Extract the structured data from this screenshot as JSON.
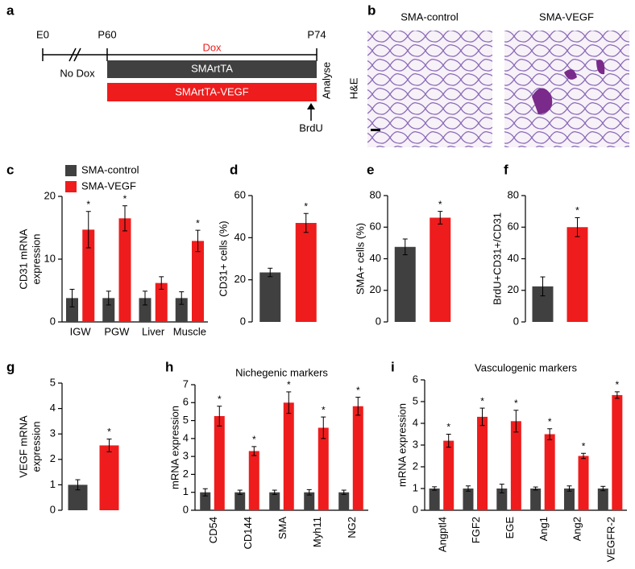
{
  "panel_labels": [
    "a",
    "b",
    "c",
    "d",
    "e",
    "f",
    "g",
    "h",
    "i"
  ],
  "timeline": {
    "stages": [
      "E0",
      "P60",
      "P74"
    ],
    "treatment": "Dox",
    "pre_treatment": "No Dox",
    "bars": [
      "SMArtTA",
      "SMArtTA-VEGF"
    ],
    "end_label": "Analyse",
    "arrow_label": "BrdU"
  },
  "micrographs": {
    "columns": [
      "SMA-control",
      "SMA-VEGF"
    ],
    "row_label": "H&E"
  },
  "chart_data": [
    {
      "type": "bar",
      "ylabel": [
        "CD31 mRNA",
        "expression"
      ],
      "categories": [
        "IGW",
        "PGW",
        "Liver",
        "Muscle"
      ],
      "ylim": [
        0,
        20
      ],
      "yticks": [
        0,
        10,
        20
      ],
      "legend": true,
      "series": [
        {
          "name": "SMA-control",
          "color": "#404040",
          "values": [
            3.8,
            3.8,
            3.8,
            3.8
          ],
          "errors": [
            1.4,
            1.1,
            1.1,
            1.0
          ]
        },
        {
          "name": "SMA-VEGF",
          "color": "#ee1c1c",
          "values": [
            14.7,
            16.5,
            6.2,
            12.9
          ],
          "errors": [
            2.9,
            2.0,
            1.0,
            1.7
          ],
          "annotations": [
            "*",
            "*",
            null,
            "*"
          ]
        }
      ]
    },
    {
      "type": "bar",
      "ylabel": [
        "CD31+ cells (%)"
      ],
      "categories": [
        null
      ],
      "ylim": [
        0,
        60
      ],
      "yticks": [
        0,
        20,
        40,
        60
      ],
      "series": [
        {
          "color": "#404040",
          "values": [
            23.5
          ],
          "errors": [
            2.0
          ]
        },
        {
          "color": "#ee1c1c",
          "values": [
            47
          ],
          "errors": [
            4.5
          ],
          "annotations": [
            "*"
          ]
        }
      ]
    },
    {
      "type": "bar",
      "ylabel": [
        "SMA+ cells (%)"
      ],
      "categories": [
        null
      ],
      "ylim": [
        0,
        80
      ],
      "yticks": [
        0,
        20,
        40,
        60,
        80
      ],
      "series": [
        {
          "color": "#404040",
          "values": [
            47.5
          ],
          "errors": [
            5
          ]
        },
        {
          "color": "#ee1c1c",
          "values": [
            66
          ],
          "errors": [
            4
          ],
          "annotations": [
            "*"
          ]
        }
      ]
    },
    {
      "type": "bar",
      "ylabel": [
        "BrdU+CD31+/CD31"
      ],
      "categories": [
        null
      ],
      "ylim": [
        0,
        80
      ],
      "yticks": [
        0,
        20,
        40,
        60,
        80
      ],
      "series": [
        {
          "color": "#404040",
          "values": [
            22.5
          ],
          "errors": [
            6
          ]
        },
        {
          "color": "#ee1c1c",
          "values": [
            60
          ],
          "errors": [
            6
          ],
          "annotations": [
            "*"
          ]
        }
      ]
    },
    {
      "type": "bar",
      "ylabel": [
        "VEGF mRNA",
        "expression"
      ],
      "categories": [
        null
      ],
      "ylim": [
        0,
        5
      ],
      "yticks": [
        0,
        1,
        2,
        3,
        4,
        5
      ],
      "series": [
        {
          "color": "#404040",
          "values": [
            1.0
          ],
          "errors": [
            0.2
          ]
        },
        {
          "color": "#ee1c1c",
          "values": [
            2.55
          ],
          "errors": [
            0.25
          ],
          "annotations": [
            "*"
          ]
        }
      ]
    },
    {
      "type": "bar",
      "title": "Nichegenic markers",
      "ylabel": [
        "mRNA expression"
      ],
      "categories": [
        "CD54",
        "CD144",
        "SMA",
        "Myh11",
        "NG2"
      ],
      "ylim": [
        0,
        7
      ],
      "yticks": [
        0,
        1,
        2,
        3,
        4,
        5,
        6,
        7
      ],
      "series": [
        {
          "color": "#404040",
          "values": [
            1,
            1,
            1,
            1,
            1
          ],
          "errors": [
            0.2,
            0.12,
            0.12,
            0.15,
            0.12
          ]
        },
        {
          "color": "#ee1c1c",
          "values": [
            5.25,
            3.3,
            6.0,
            4.6,
            5.8
          ],
          "errors": [
            0.55,
            0.25,
            0.6,
            0.6,
            0.5
          ],
          "annotations": [
            "*",
            "*",
            "*",
            "*",
            "*"
          ]
        }
      ]
    },
    {
      "type": "bar",
      "title": "Vasculogenic markers",
      "ylabel": [
        "mRNA expression"
      ],
      "categories": [
        "Angptl4",
        "FGF2",
        "EGE",
        "Ang1",
        "Ang2",
        "VEGFR-2"
      ],
      "ylim": [
        0,
        6
      ],
      "yticks": [
        0,
        1,
        2,
        3,
        4,
        5,
        6
      ],
      "series": [
        {
          "color": "#404040",
          "values": [
            1,
            1,
            1,
            1,
            1,
            1
          ],
          "errors": [
            0.08,
            0.12,
            0.2,
            0.07,
            0.12,
            0.1
          ]
        },
        {
          "color": "#ee1c1c",
          "values": [
            3.2,
            4.3,
            4.1,
            3.5,
            2.5,
            5.3
          ],
          "errors": [
            0.3,
            0.4,
            0.5,
            0.25,
            0.12,
            0.15
          ],
          "annotations": [
            "*",
            "*",
            "*",
            "*",
            "*",
            "*"
          ]
        }
      ]
    }
  ]
}
